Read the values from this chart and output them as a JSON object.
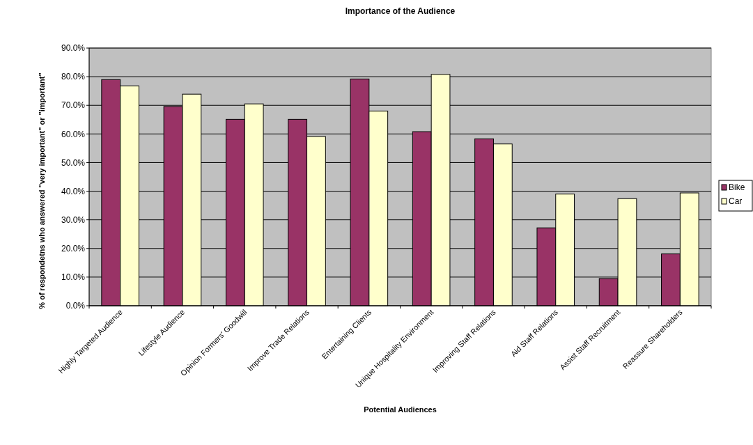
{
  "chart_data": {
    "type": "bar",
    "title": "Importance of the Audience",
    "xlabel": "Potential Audiences",
    "ylabel": "% of respondetns who answered \"very important\" or \"important\"",
    "categories": [
      "Highly Targeted Audience",
      "Lifestyle Audience",
      "Opinion Formers' Goodwill",
      "Improve Trade Relations",
      "Entertaining Clients",
      "Unique Hospitality Environment",
      "Improving Staff Relations",
      "Aid Staff Relations",
      "Assist Staff Recruitment",
      "Reassure Shareholders"
    ],
    "series": [
      {
        "name": "Bike",
        "color": "#993366",
        "values": [
          79.0,
          69.6,
          65.1,
          65.1,
          79.2,
          60.8,
          58.3,
          27.2,
          9.5,
          18.1
        ]
      },
      {
        "name": "Car",
        "color": "#ffffcc",
        "values": [
          76.8,
          73.9,
          70.5,
          59.1,
          68.0,
          80.8,
          56.5,
          39.0,
          37.4,
          39.4
        ]
      }
    ],
    "ylim": [
      0,
      90
    ],
    "yticks": [
      {
        "value": 0,
        "label": "0.0%"
      },
      {
        "value": 10,
        "label": "10.0%"
      },
      {
        "value": 20,
        "label": "20.0%"
      },
      {
        "value": 30,
        "label": "30.0%"
      },
      {
        "value": 40,
        "label": "40.0%"
      },
      {
        "value": 50,
        "label": "50.0%"
      },
      {
        "value": 60,
        "label": "60.0%"
      },
      {
        "value": 70,
        "label": "70.0%"
      },
      {
        "value": 80,
        "label": "80.0%"
      },
      {
        "value": 90,
        "label": "90.0%"
      }
    ],
    "grid": "y",
    "legend": "right"
  }
}
